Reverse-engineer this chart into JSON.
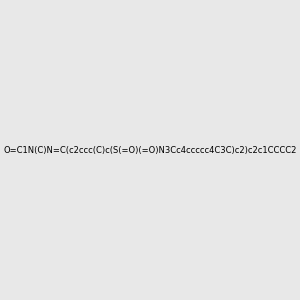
{
  "smiles": "O=C1N(C)N=C(c2ccc(C)c(S(=O)(=O)N3Cc4ccccc4C3C)c2)c2c1CCCC2",
  "img_size": [
    300,
    300
  ],
  "background_color": "#e8e8e8",
  "title": "",
  "atom_colors": {
    "O": "#ff0000",
    "N": "#0000ff",
    "S": "#ddaa00",
    "C": "#000000"
  }
}
